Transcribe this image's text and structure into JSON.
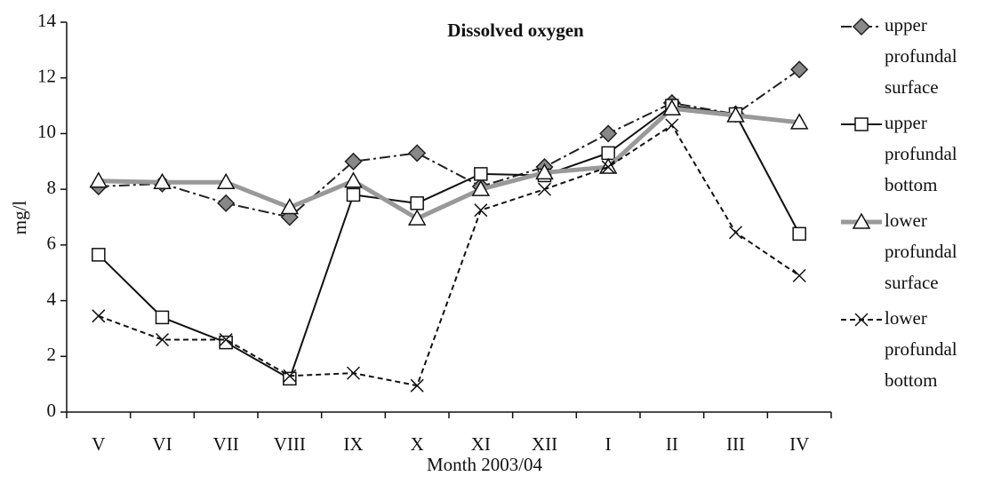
{
  "chart_data": {
    "type": "line",
    "title": "Dissolved oxygen",
    "x_label": "Month  2003/04",
    "y_label": "mg/l",
    "categories": [
      "V",
      "VI",
      "VII",
      "VIII",
      "IX",
      "X",
      "XI",
      "XII",
      "I",
      "II",
      "III",
      "IV"
    ],
    "ylim": [
      0,
      14
    ],
    "yticks": [
      0,
      2,
      4,
      6,
      8,
      10,
      12,
      14
    ],
    "grid": false,
    "legend": "right",
    "series": [
      {
        "name": "upper profundal surface",
        "color": "#222222",
        "marker": "diamond",
        "marker_fill": "#888888",
        "dash": "12 4 3 4",
        "width": 2,
        "values": [
          8.1,
          8.2,
          7.5,
          7.0,
          9.0,
          9.3,
          8.1,
          8.8,
          10.0,
          11.1,
          10.7,
          12.3
        ]
      },
      {
        "name": "upper profundal bottom",
        "color": "#111111",
        "marker": "square",
        "marker_fill": "#ffffff",
        "dash": "",
        "width": 2,
        "values": [
          5.65,
          3.4,
          2.5,
          1.2,
          7.8,
          7.5,
          8.55,
          8.5,
          9.3,
          11.0,
          10.7,
          6.4
        ]
      },
      {
        "name": "lower profundal surface",
        "color": "#999999",
        "marker": "triangle",
        "marker_fill": "#ffffff",
        "dash": "",
        "width": 5,
        "values": [
          8.3,
          8.25,
          8.25,
          7.35,
          8.3,
          6.95,
          8.0,
          8.6,
          8.8,
          10.9,
          10.65,
          10.4
        ]
      },
      {
        "name": "lower profundal bottom",
        "color": "#111111",
        "marker": "x",
        "marker_fill": "none",
        "dash": "6 4",
        "width": 2,
        "values": [
          3.45,
          2.6,
          2.6,
          1.3,
          1.4,
          0.95,
          7.25,
          8.0,
          8.8,
          10.3,
          6.45,
          4.9
        ]
      }
    ]
  }
}
